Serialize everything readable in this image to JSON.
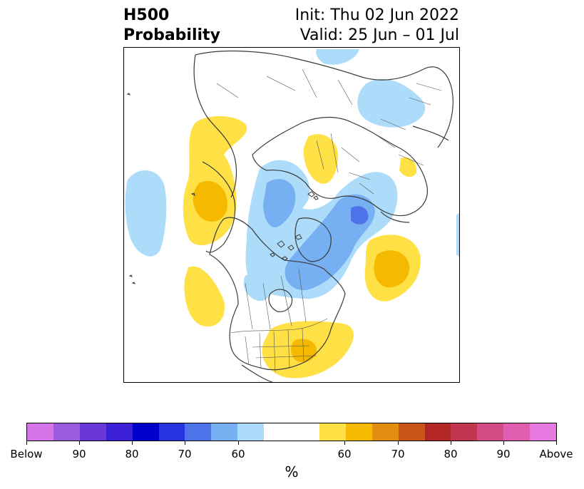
{
  "header": {
    "title_line1": "H500",
    "title_line2": "Probability",
    "init_text": "Init: Thu 02 Jun 2022",
    "valid_text": "Valid: 25 Jun – 01 Jul"
  },
  "colors": {
    "below_scale": [
      "#d675e8",
      "#9b5ae0",
      "#6a38d8",
      "#3a1fd6",
      "#0000cc",
      "#2434de",
      "#4e72e8",
      "#76b0f2",
      "#acdcfa"
    ],
    "neutral": "#ffffff",
    "above_scale": [
      "#ffe045",
      "#f5ba00",
      "#e28c10",
      "#c75618",
      "#b32626",
      "#c23650",
      "#d24c86",
      "#e05eb0",
      "#e67ae0"
    ],
    "land_outline": "#3a3a3a"
  },
  "colorbar": {
    "ticks": [
      {
        "label": "Below"
      },
      {
        "label": "90"
      },
      {
        "label": "80"
      },
      {
        "label": "70"
      },
      {
        "label": "60"
      },
      {
        "label": "60"
      },
      {
        "label": "70"
      },
      {
        "label": "80"
      },
      {
        "label": "90"
      },
      {
        "label": "Above"
      }
    ],
    "unit": "%"
  }
}
